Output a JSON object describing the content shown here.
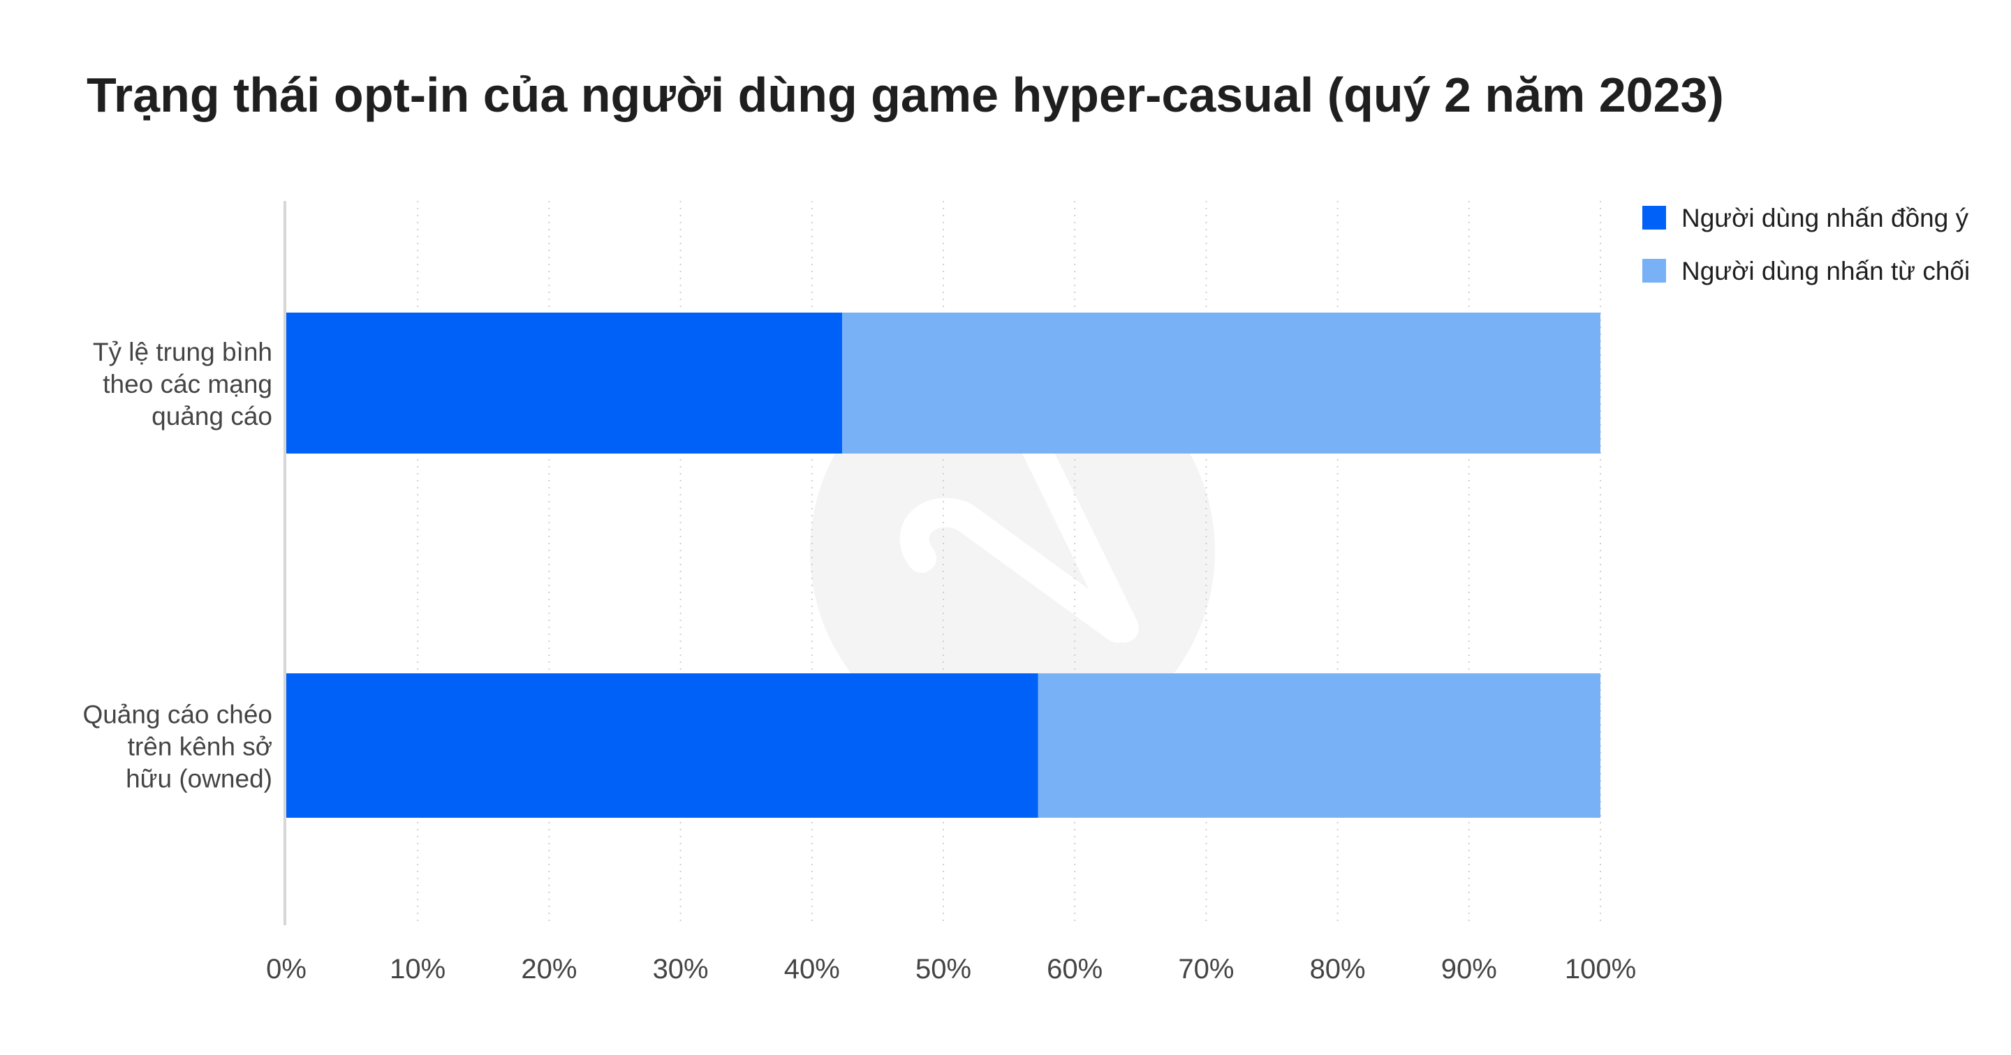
{
  "colors": {
    "accept": "#0061F8",
    "decline": "#78B1F6",
    "grid": "#CFCFCF",
    "axis": "#D6D6D6",
    "text": "#1F1F1F",
    "tick_text": "#444444",
    "watermark": "#F4F4F4"
  },
  "chart_data": {
    "type": "bar",
    "orientation": "horizontal",
    "stacked": true,
    "title": "Trạng thái opt-in của người dùng game hyper-casual (quý 2 năm 2023)",
    "xlabel": "",
    "ylabel": "",
    "xlim": [
      0,
      100
    ],
    "x_ticks": [
      "0%",
      "10%",
      "20%",
      "30%",
      "40%",
      "50%",
      "60%",
      "70%",
      "80%",
      "90%",
      "100%"
    ],
    "categories": [
      [
        "Tỷ lệ trung bình",
        "theo các mạng",
        "quảng cáo"
      ],
      [
        "Quảng cáo chéo",
        "trên kênh sở",
        "hữu (owned)"
      ]
    ],
    "series": [
      {
        "name": "Người dùng nhấn đồng ý",
        "values": [
          42.3,
          57.2
        ]
      },
      {
        "name": "Người dùng nhấn từ chối",
        "values": [
          57.7,
          42.8
        ]
      }
    ],
    "grid": "vertical dotted",
    "legend_position": "top-right"
  }
}
